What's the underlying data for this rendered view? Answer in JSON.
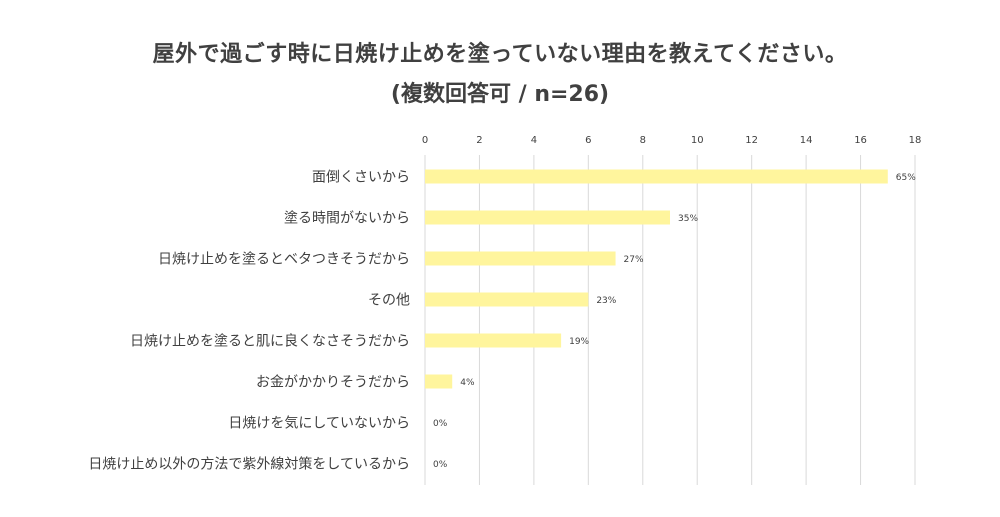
{
  "chart_data": {
    "type": "bar",
    "orientation": "horizontal",
    "title": "屋外で過ごす時に日焼け止めを塗っていない理由を教えてください。",
    "subtitle": "(複数回答可 / n=26)",
    "categories": [
      "面倒くさいから",
      "塗る時間がないから",
      "日焼け止めを塗るとベタつきそうだから",
      "その他",
      "日焼け止めを塗ると肌に良くなさそうだから",
      "お金がかかりそうだから",
      "日焼けを気にしていないから",
      "日焼け止め以外の方法で紫外線対策をしているから"
    ],
    "values": [
      17,
      9,
      7,
      6,
      5,
      1,
      0,
      0
    ],
    "data_labels": [
      "65%",
      "35%",
      "27%",
      "23%",
      "19%",
      "4%",
      "0%",
      "0%"
    ],
    "xlim": [
      0,
      18
    ],
    "xticks": [
      "0",
      "2",
      "4",
      "6",
      "8",
      "10",
      "12",
      "14",
      "16",
      "18"
    ],
    "grid": true,
    "legend": "none",
    "bar_color": "#FFF59D",
    "grid_color": "#D9D9D9"
  }
}
